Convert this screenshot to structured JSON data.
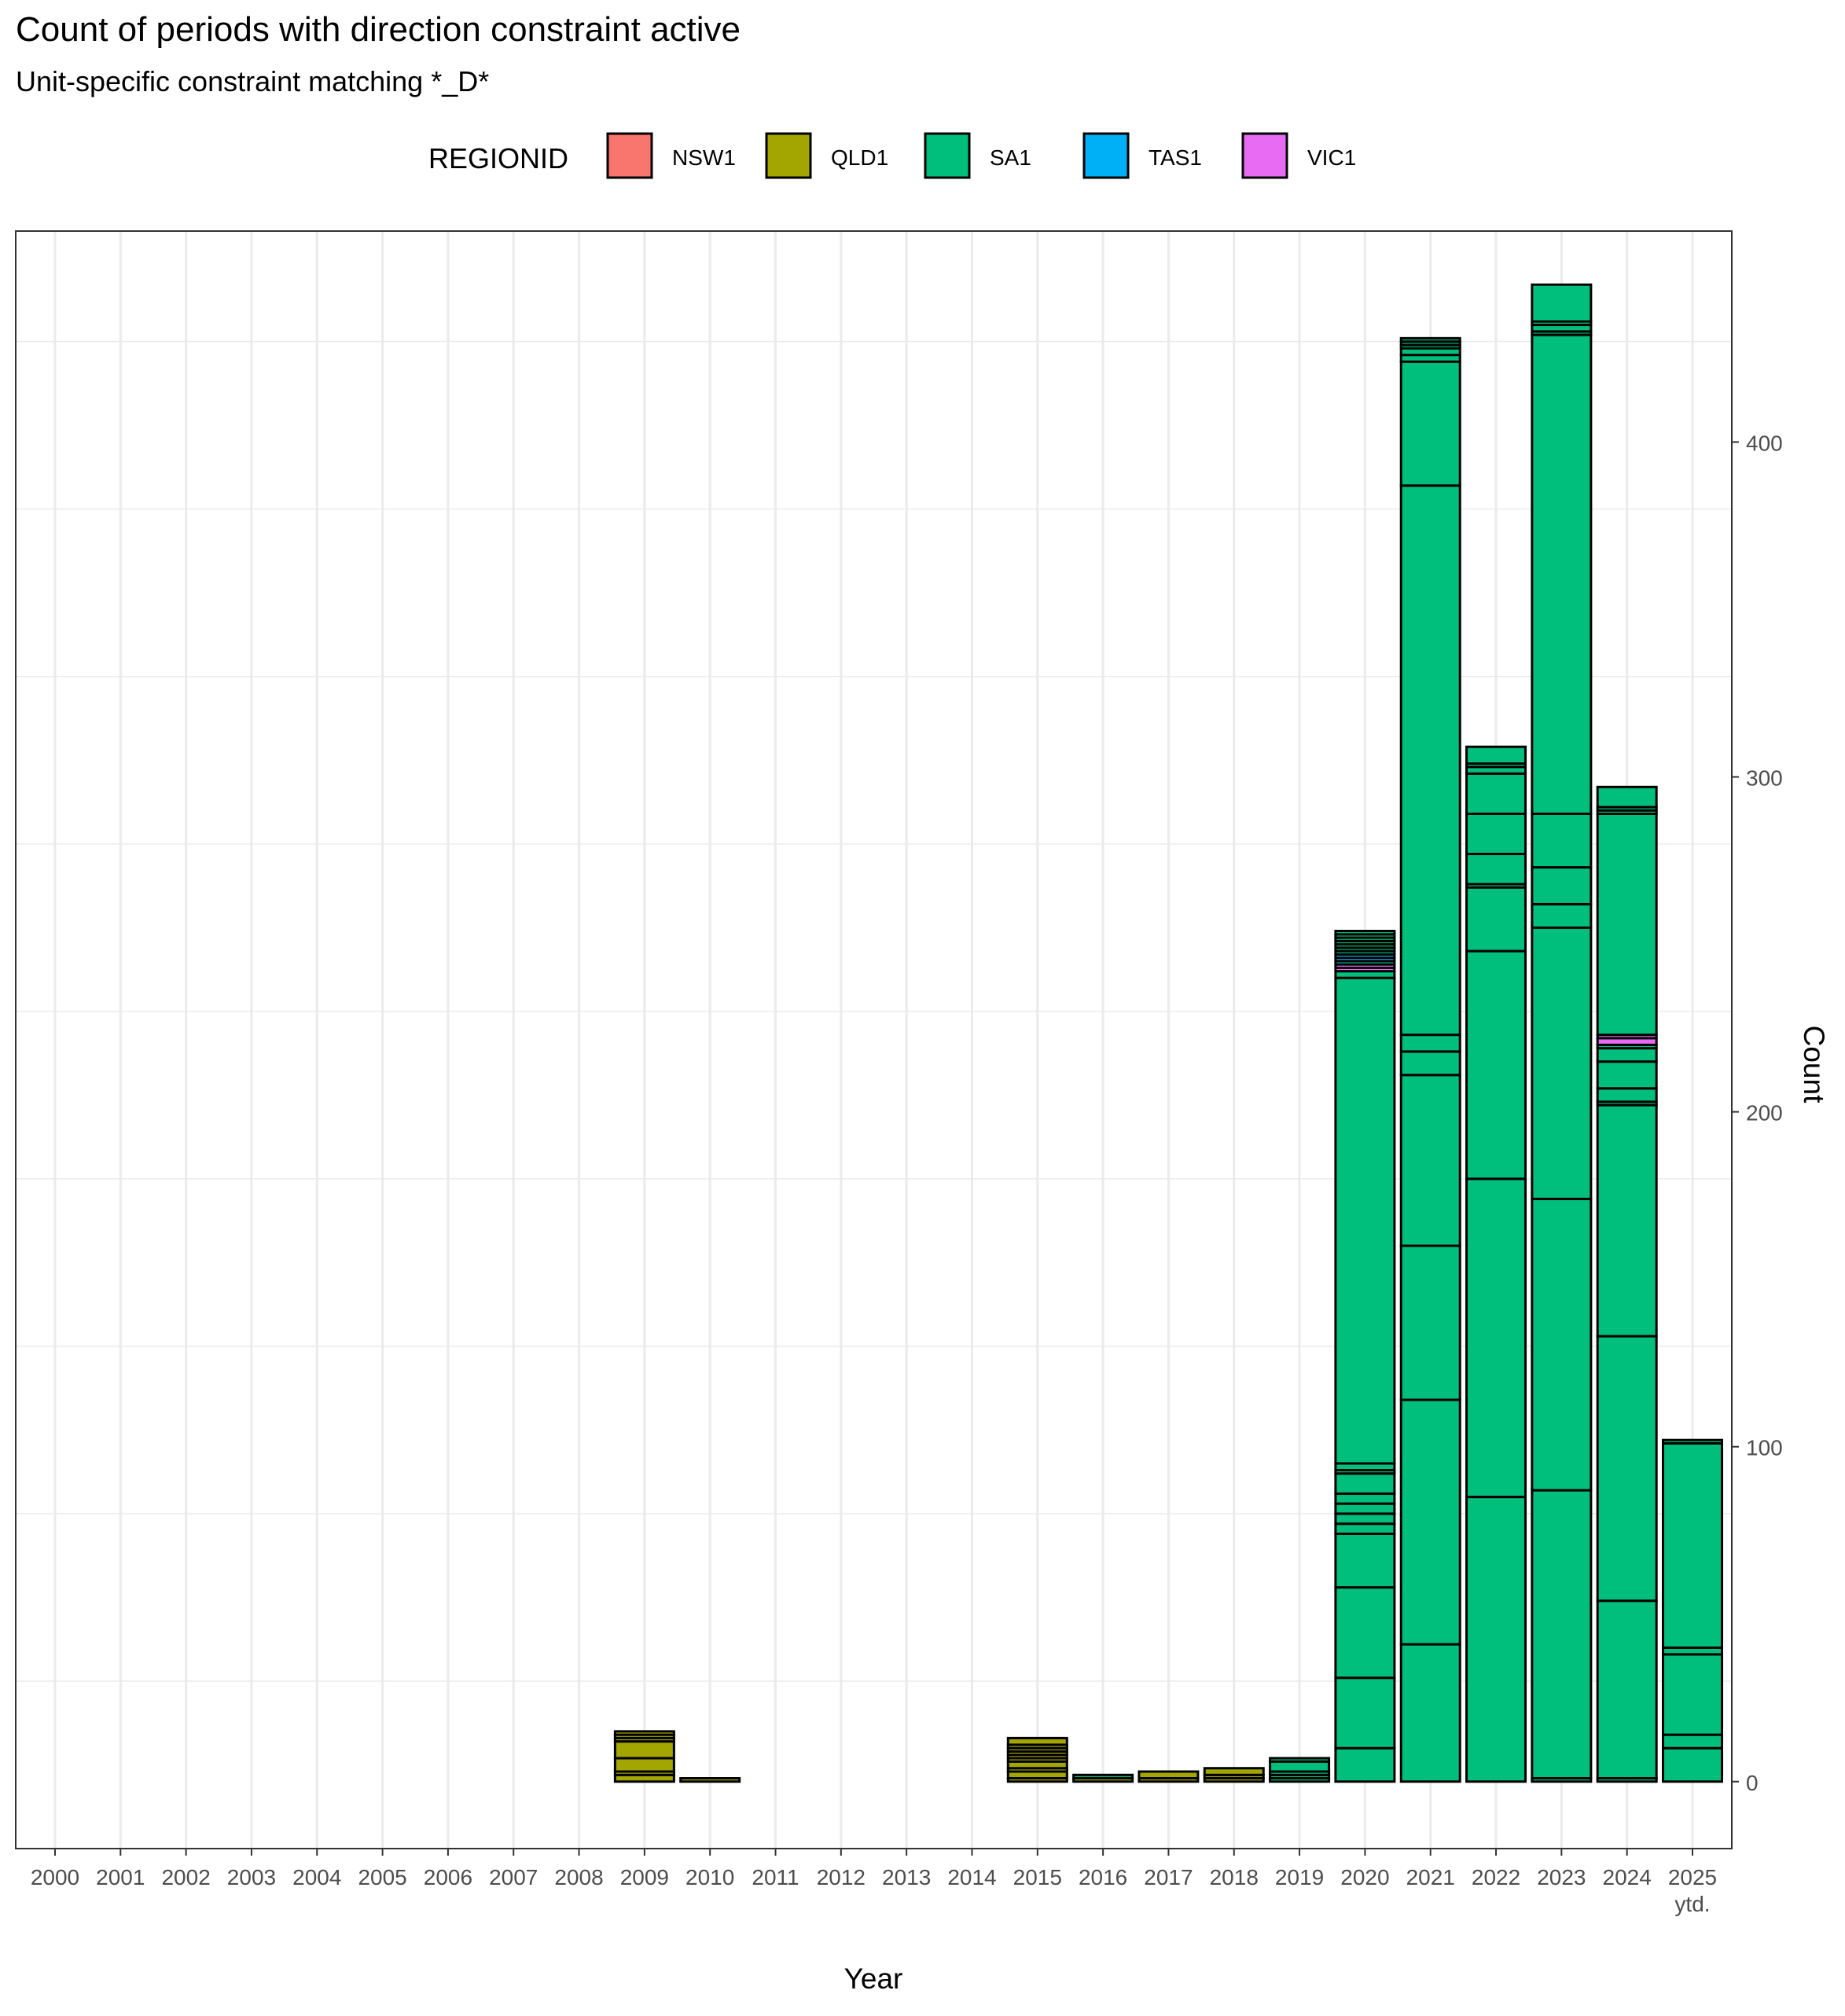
{
  "chart_data": {
    "type": "bar",
    "stacked": true,
    "title": "Count of periods with direction constraint active",
    "subtitle": "Unit-specific constraint matching *_D*",
    "xlabel": "Year",
    "ylabel": "Count",
    "y_axis_position": "right",
    "ylim": [
      -20,
      463
    ],
    "y_ticks": [
      0,
      100,
      200,
      300,
      400
    ],
    "grid": true,
    "legend": {
      "title": "REGIONID",
      "position": "top",
      "entries": [
        {
          "name": "NSW1",
          "color": "#F8766D"
        },
        {
          "name": "QLD1",
          "color": "#A3A500"
        },
        {
          "name": "SA1",
          "color": "#00BF7D"
        },
        {
          "name": "TAS1",
          "color": "#00B0F6"
        },
        {
          "name": "VIC1",
          "color": "#E76BF3"
        }
      ]
    },
    "categories": [
      "2000",
      "2001",
      "2002",
      "2003",
      "2004",
      "2005",
      "2006",
      "2007",
      "2008",
      "2009",
      "2010",
      "2011",
      "2012",
      "2013",
      "2014",
      "2015",
      "2016",
      "2017",
      "2018",
      "2019",
      "2020",
      "2021",
      "2022",
      "2023",
      "2024",
      "2025\nytd."
    ],
    "bars": [
      {
        "year": "2009",
        "segments": [
          [
            "QLD1",
            2
          ],
          [
            "QLD1",
            1
          ],
          [
            "QLD1",
            4
          ],
          [
            "QLD1",
            5
          ],
          [
            "QLD1",
            1
          ],
          [
            "QLD1",
            1
          ],
          [
            "QLD1",
            1
          ]
        ]
      },
      {
        "year": "2010",
        "segments": [
          [
            "QLD1",
            1
          ]
        ]
      },
      {
        "year": "2015",
        "segments": [
          [
            "QLD1",
            1
          ],
          [
            "QLD1",
            2
          ],
          [
            "QLD1",
            1
          ],
          [
            "QLD1",
            2
          ],
          [
            "QLD1",
            1
          ],
          [
            "QLD1",
            1
          ],
          [
            "QLD1",
            1
          ],
          [
            "QLD1",
            1
          ],
          [
            "QLD1",
            1
          ],
          [
            "QLD1",
            2
          ]
        ]
      },
      {
        "year": "2016",
        "segments": [
          [
            "QLD1",
            1
          ],
          [
            "SA1",
            1
          ]
        ]
      },
      {
        "year": "2017",
        "segments": [
          [
            "QLD1",
            1
          ],
          [
            "QLD1",
            2
          ]
        ]
      },
      {
        "year": "2018",
        "segments": [
          [
            "QLD1",
            1
          ],
          [
            "QLD1",
            1
          ],
          [
            "QLD1",
            2
          ]
        ]
      },
      {
        "year": "2019",
        "segments": [
          [
            "SA1",
            1
          ],
          [
            "SA1",
            1
          ],
          [
            "SA1",
            1
          ],
          [
            "SA1",
            3
          ],
          [
            "SA1",
            1
          ]
        ]
      },
      {
        "year": "2020",
        "segments": [
          [
            "SA1",
            10
          ],
          [
            "SA1",
            21
          ],
          [
            "SA1",
            27
          ],
          [
            "SA1",
            16
          ],
          [
            "SA1",
            3
          ],
          [
            "SA1",
            3
          ],
          [
            "SA1",
            3
          ],
          [
            "SA1",
            3
          ],
          [
            "SA1",
            6
          ],
          [
            "SA1",
            1
          ],
          [
            "SA1",
            2
          ],
          [
            "SA1",
            145
          ],
          [
            "SA1",
            2
          ],
          [
            "VIC1",
            1
          ],
          [
            "VIC1",
            1
          ],
          [
            "SA1",
            1
          ],
          [
            "TAS1",
            1
          ],
          [
            "TAS1",
            1
          ],
          [
            "SA1",
            1
          ],
          [
            "SA1",
            1
          ],
          [
            "SA1",
            1
          ],
          [
            "SA1",
            1
          ],
          [
            "SA1",
            1
          ],
          [
            "SA1",
            1
          ],
          [
            "SA1",
            1
          ]
        ]
      },
      {
        "year": "2021",
        "segments": [
          [
            "SA1",
            41
          ],
          [
            "SA1",
            73
          ],
          [
            "SA1",
            46
          ],
          [
            "SA1",
            51
          ],
          [
            "SA1",
            7
          ],
          [
            "SA1",
            5
          ],
          [
            "SA1",
            164
          ],
          [
            "SA1",
            37
          ],
          [
            "SA1",
            2
          ],
          [
            "SA1",
            2
          ],
          [
            "SA1",
            1
          ],
          [
            "SA1",
            1
          ],
          [
            "SA1",
            1
          ]
        ]
      },
      {
        "year": "2022",
        "segments": [
          [
            "SA1",
            85
          ],
          [
            "SA1",
            95
          ],
          [
            "SA1",
            68
          ],
          [
            "SA1",
            19
          ],
          [
            "SA1",
            1
          ],
          [
            "SA1",
            9
          ],
          [
            "SA1",
            12
          ],
          [
            "SA1",
            12
          ],
          [
            "SA1",
            2
          ],
          [
            "SA1",
            1
          ],
          [
            "SA1",
            5
          ]
        ]
      },
      {
        "year": "2023",
        "segments": [
          [
            "SA1",
            1
          ],
          [
            "SA1",
            86
          ],
          [
            "SA1",
            87
          ],
          [
            "SA1",
            81
          ],
          [
            "SA1",
            7
          ],
          [
            "SA1",
            11
          ],
          [
            "SA1",
            16
          ],
          [
            "SA1",
            143
          ],
          [
            "SA1",
            1
          ],
          [
            "SA1",
            2
          ],
          [
            "SA1",
            1
          ],
          [
            "SA1",
            11
          ]
        ]
      },
      {
        "year": "2024",
        "segments": [
          [
            "SA1",
            1
          ],
          [
            "SA1",
            53
          ],
          [
            "SA1",
            79
          ],
          [
            "SA1",
            69
          ],
          [
            "SA1",
            1
          ],
          [
            "SA1",
            4
          ],
          [
            "SA1",
            8
          ],
          [
            "SA1",
            4
          ],
          [
            "SA1",
            1
          ],
          [
            "VIC1",
            2
          ],
          [
            "VIC1",
            1
          ],
          [
            "SA1",
            66
          ],
          [
            "SA1",
            1
          ],
          [
            "SA1",
            1
          ],
          [
            "SA1",
            6
          ]
        ]
      },
      {
        "year": "2025\nytd.",
        "segments": [
          [
            "SA1",
            10
          ],
          [
            "SA1",
            4
          ],
          [
            "SA1",
            24
          ],
          [
            "SA1",
            2
          ],
          [
            "SA1",
            61
          ],
          [
            "SA1",
            1
          ]
        ]
      }
    ]
  }
}
